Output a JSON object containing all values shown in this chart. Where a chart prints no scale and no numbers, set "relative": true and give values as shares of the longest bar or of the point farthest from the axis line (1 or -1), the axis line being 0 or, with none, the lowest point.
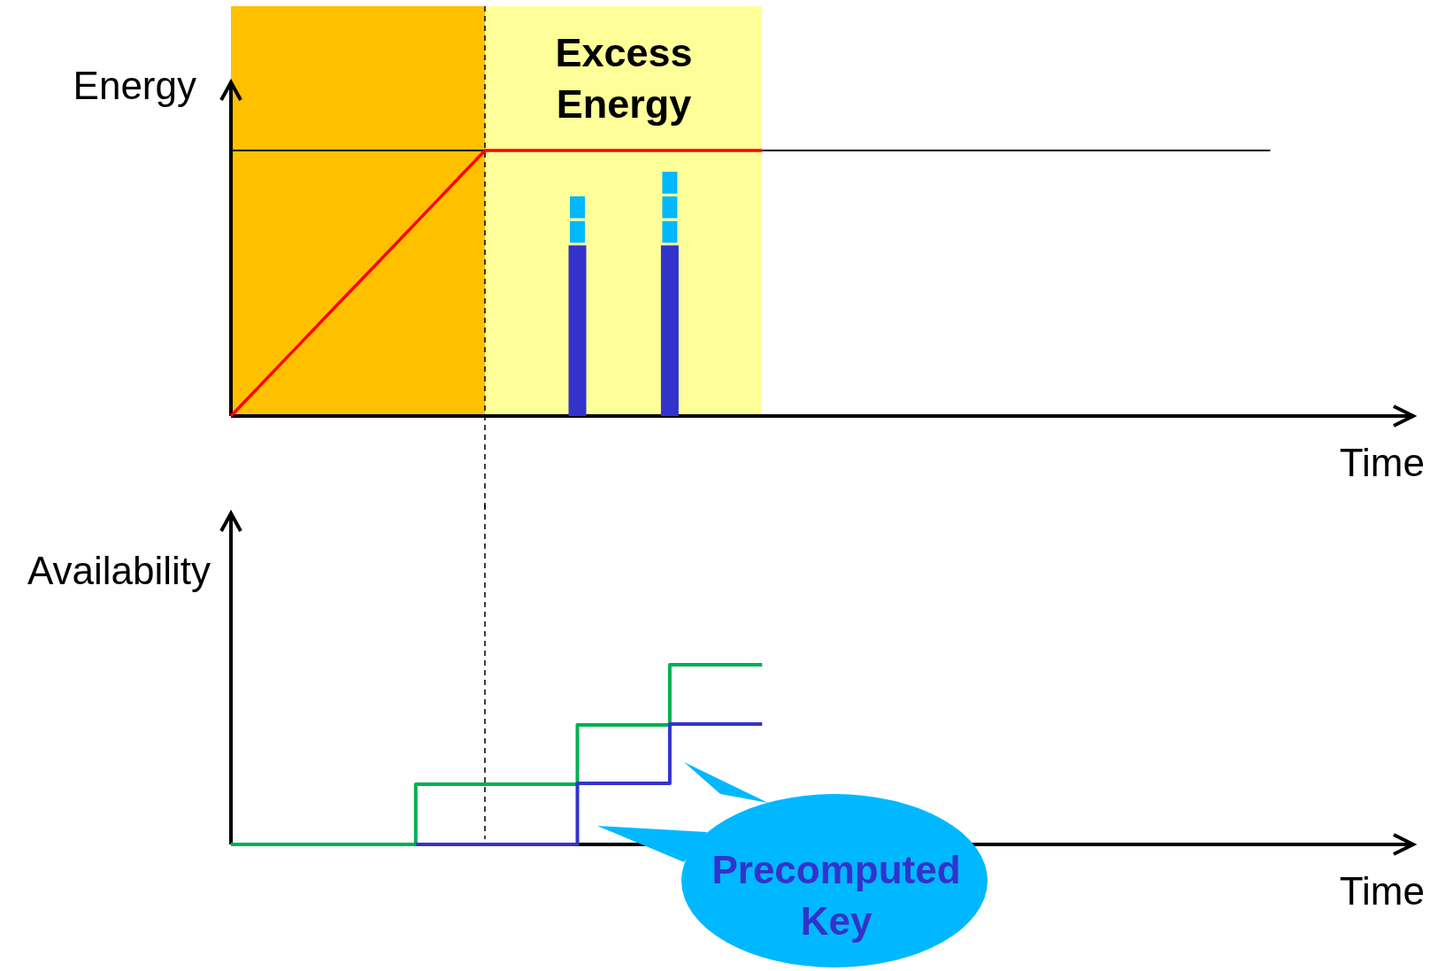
{
  "chart_data": [
    {
      "type": "line",
      "relative": true,
      "xlabel": "Time",
      "ylabel": "Energy",
      "annotations": [
        "Excess Energy"
      ],
      "categories": [
        null,
        null,
        null,
        null,
        null,
        null,
        null,
        null,
        null,
        null,
        null,
        null,
        null,
        null,
        null,
        null,
        null,
        null,
        null,
        null,
        null,
        null,
        null,
        null,
        null,
        null,
        null,
        null,
        null,
        null,
        null,
        null,
        null,
        null,
        null,
        null,
        null,
        null,
        null,
        null,
        null,
        null,
        null,
        null,
        null,
        null
      ],
      "series": [
        {
          "color": "#000000",
          "values": [
            1,
            1,
            1,
            1,
            1,
            1,
            1,
            1,
            1,
            1,
            1,
            1,
            null,
            null,
            null,
            null,
            null,
            null,
            null,
            null,
            null,
            null,
            null,
            1,
            1,
            1,
            1,
            1,
            1,
            1,
            1,
            1,
            1,
            1,
            1,
            1,
            1,
            1,
            1,
            1,
            1,
            1,
            1,
            1,
            1,
            1
          ]
        },
        {
          "color": "#ff0000",
          "values": [
            0,
            0.091,
            0.182,
            0.273,
            0.364,
            0.455,
            0.545,
            0.636,
            0.727,
            0.818,
            0.909,
            1,
            1,
            1,
            1,
            1,
            1,
            1,
            1,
            1,
            1,
            1,
            1,
            1,
            null,
            null,
            null,
            null,
            null,
            null,
            null,
            null,
            null,
            null,
            null,
            null,
            null,
            null,
            null,
            null,
            null,
            null,
            null,
            null,
            null,
            null
          ]
        }
      ]
    },
    {
      "type": "bar",
      "relative": true,
      "stacked": true,
      "categories": [
        null,
        null,
        null,
        null,
        null,
        null,
        null,
        null,
        null,
        null,
        null,
        null,
        null,
        null,
        null,
        null,
        null,
        null,
        null,
        null,
        null,
        null,
        null,
        null,
        null,
        null,
        null,
        null,
        null,
        null,
        null,
        null,
        null,
        null,
        null,
        null,
        null,
        null,
        null,
        null,
        null,
        null,
        null,
        null,
        null,
        null
      ],
      "series": [
        {
          "color": "#3333cc",
          "values": [
            null,
            null,
            null,
            null,
            null,
            null,
            null,
            null,
            null,
            null,
            null,
            null,
            null,
            null,
            null,
            0.7,
            null,
            null,
            null,
            0.7,
            null,
            null,
            null,
            null,
            null,
            null,
            null,
            null,
            null,
            null,
            null,
            null,
            null,
            null,
            null,
            null,
            null,
            null,
            null,
            null,
            null,
            null,
            null,
            null,
            null,
            null
          ]
        },
        {
          "color": "#00b8ff",
          "values": [
            null,
            null,
            null,
            null,
            null,
            null,
            null,
            null,
            null,
            null,
            null,
            null,
            null,
            null,
            null,
            0.1,
            null,
            null,
            null,
            0.1,
            null,
            null,
            null,
            null,
            null,
            null,
            null,
            null,
            null,
            null,
            null,
            null,
            null,
            null,
            null,
            null,
            null,
            null,
            null,
            null,
            null,
            null,
            null,
            null,
            null,
            null
          ]
        },
        {
          "color": "#00b8ff",
          "values": [
            null,
            null,
            null,
            null,
            null,
            null,
            null,
            null,
            null,
            null,
            null,
            null,
            null,
            null,
            null,
            0.1,
            null,
            null,
            null,
            0.1,
            null,
            null,
            null,
            null,
            null,
            null,
            null,
            null,
            null,
            null,
            null,
            null,
            null,
            null,
            null,
            null,
            null,
            null,
            null,
            null,
            null,
            null,
            null,
            null,
            null,
            null
          ]
        },
        {
          "color": "#00b8ff",
          "values": [
            null,
            null,
            null,
            null,
            null,
            null,
            null,
            null,
            null,
            null,
            null,
            null,
            null,
            null,
            null,
            null,
            null,
            null,
            null,
            0.1,
            null,
            null,
            null,
            null,
            null,
            null,
            null,
            null,
            null,
            null,
            null,
            null,
            null,
            null,
            null,
            null,
            null,
            null,
            null,
            null,
            null,
            null,
            null,
            null,
            null,
            null
          ]
        }
      ]
    },
    {
      "type": "step",
      "relative": true,
      "xlabel": "Time",
      "ylabel": "Availability",
      "annotations": [
        "Precomputed Key"
      ],
      "categories": [
        null,
        null,
        null,
        null,
        null,
        null,
        null,
        null,
        null,
        null,
        null,
        null,
        null,
        null,
        null,
        null,
        null,
        null,
        null,
        null,
        null,
        null,
        null,
        null,
        null,
        null,
        null,
        null,
        null,
        null,
        null,
        null,
        null,
        null,
        null,
        null,
        null,
        null,
        null,
        null,
        null,
        null,
        null,
        null,
        null,
        null
      ],
      "series": [
        {
          "color": "#00b050",
          "values": [
            0,
            0,
            0,
            0,
            0,
            0,
            0,
            0,
            0.335,
            0.335,
            0.335,
            0.335,
            0.335,
            0.335,
            0.335,
            0.665,
            0.665,
            0.665,
            0.665,
            1,
            1,
            1,
            1,
            1,
            null,
            null,
            null,
            null,
            null,
            null,
            null,
            null,
            null,
            null,
            null,
            null,
            null,
            null,
            null,
            null,
            null,
            null,
            null,
            null,
            null,
            null
          ]
        },
        {
          "color": "#3333cc",
          "values": [
            null,
            null,
            null,
            null,
            null,
            null,
            null,
            null,
            0,
            0,
            0,
            0,
            0,
            0,
            0,
            0.34,
            0.34,
            0.34,
            0.34,
            0.67,
            0.67,
            0.67,
            0.67,
            0.67,
            null,
            null,
            null,
            null,
            null,
            null,
            null,
            null,
            null,
            null,
            null,
            null,
            null,
            null,
            null,
            null,
            null,
            null,
            null,
            null,
            null,
            null
          ]
        }
      ]
    }
  ]
}
